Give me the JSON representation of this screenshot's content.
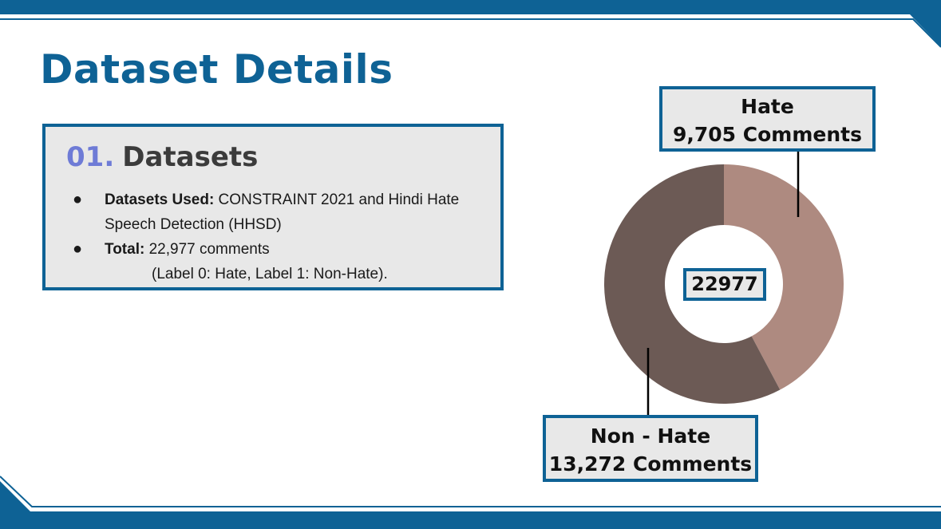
{
  "slide": {
    "title": "Dataset Details",
    "section": {
      "number": "01.",
      "heading": "Datasets",
      "bullets": [
        {
          "label": "Datasets Used:",
          "text": " CONSTRAINT 2021 and Hindi Hate Speech Detection (HHSD)"
        },
        {
          "label": "Total:",
          "text": " 22,977 comments",
          "subtext": "(Label 0: Hate, Label 1: Non-Hate)."
        }
      ]
    }
  },
  "chart_data": {
    "type": "pie",
    "donut": true,
    "center_label": "22977",
    "labels": [
      {
        "name": "Hate",
        "value_label": "9,705 Comments"
      },
      {
        "name": "Non - Hate",
        "value_label": "13,272 Comments"
      }
    ],
    "values": [
      9705,
      13272
    ],
    "colors": [
      "#ae8a80",
      "#6c5a55"
    ]
  },
  "theme": {
    "accent": "#0e6295",
    "number_color": "#6e7bd6"
  }
}
